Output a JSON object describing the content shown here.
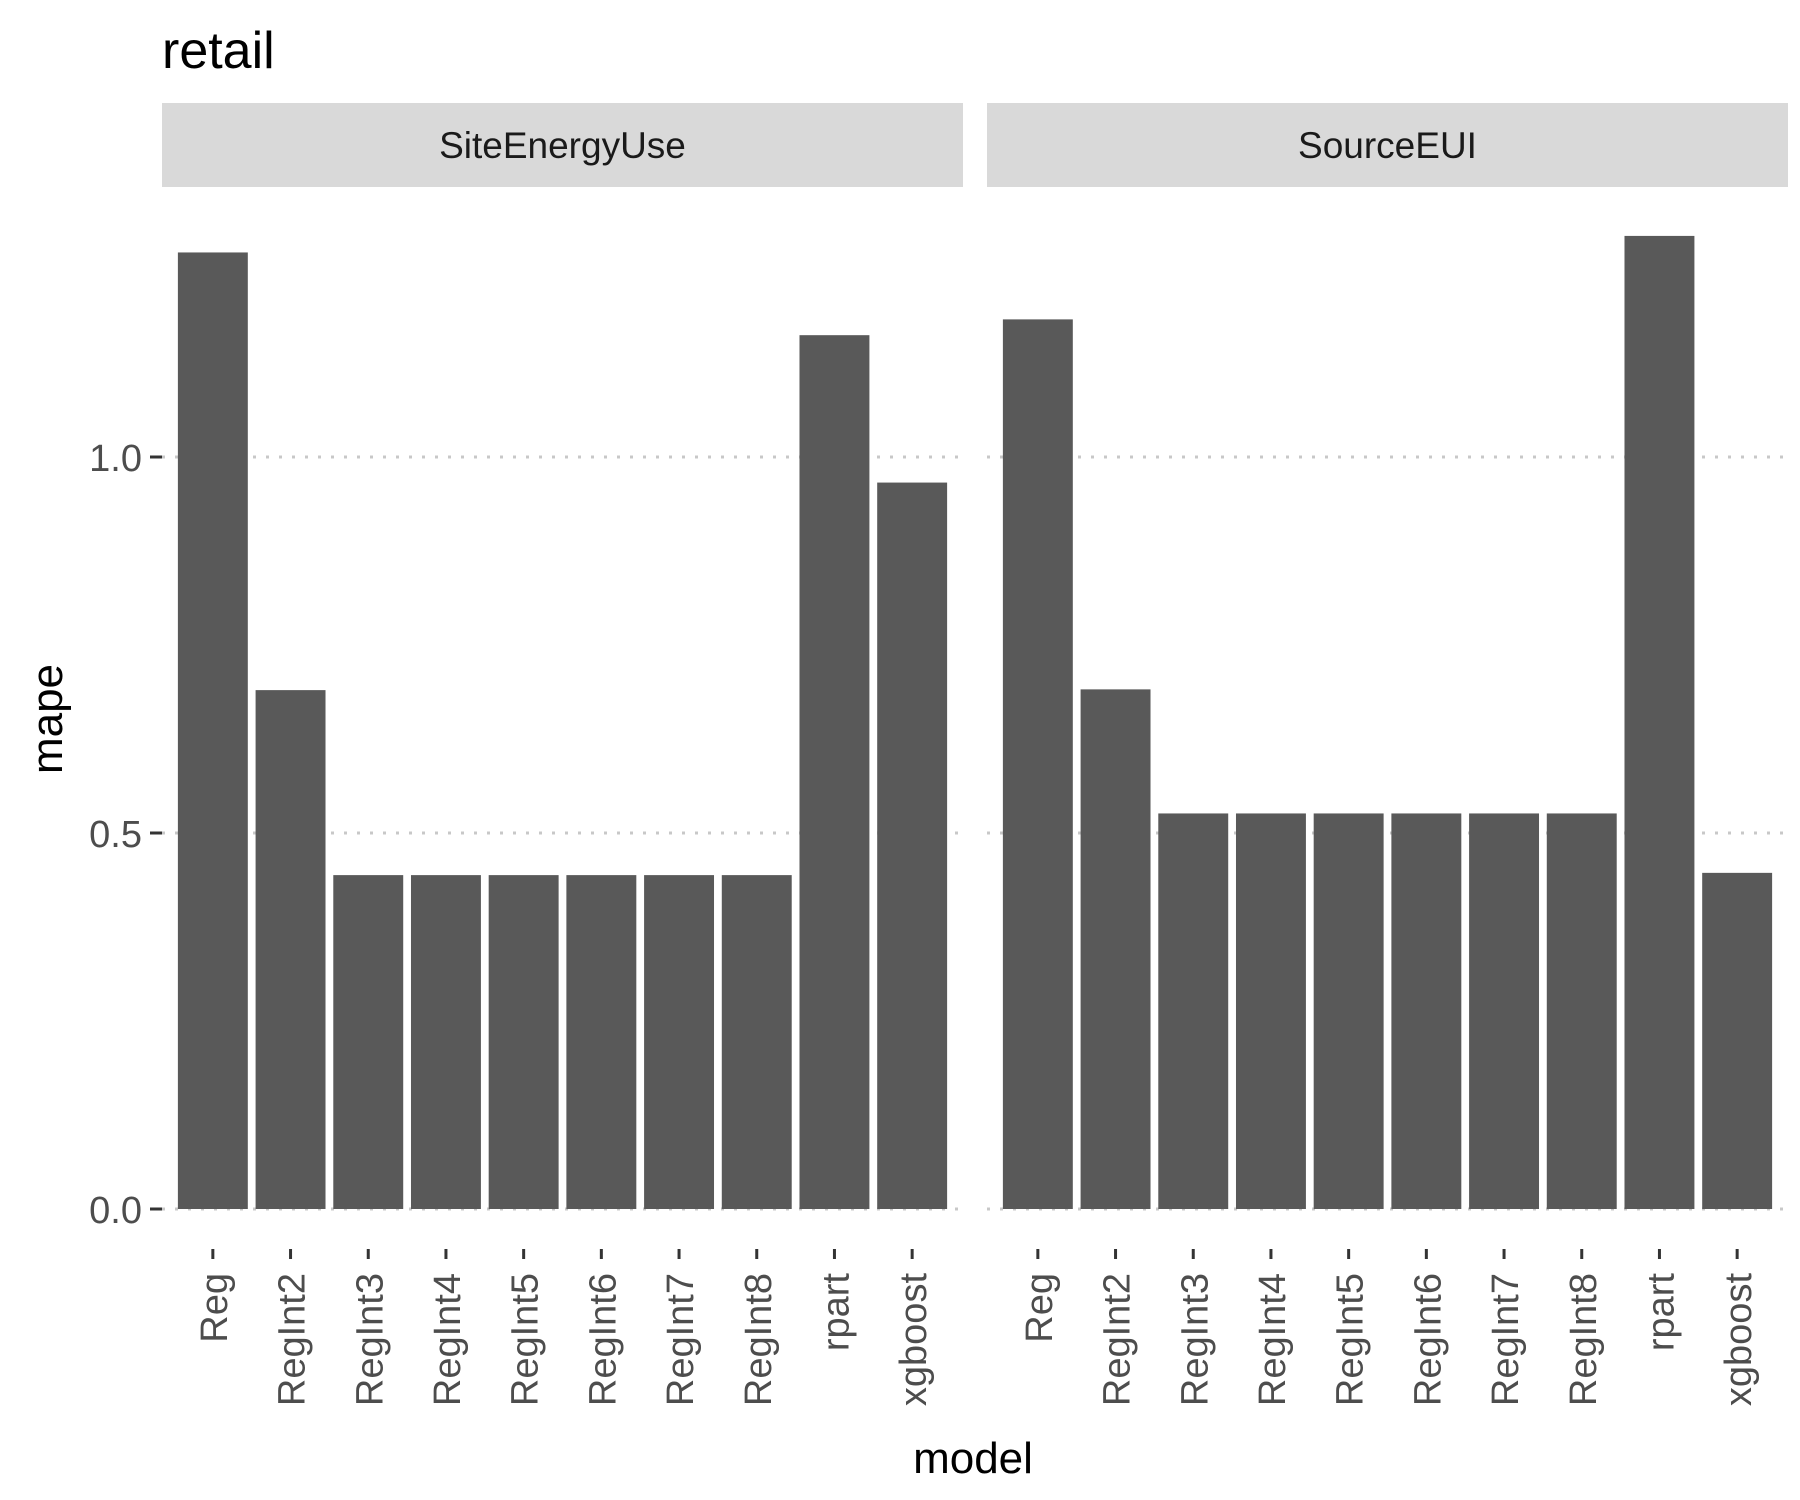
{
  "chart_data": {
    "type": "bar",
    "title": "retail",
    "xlabel": "model",
    "ylabel": "mape",
    "ylim": [
      0,
      1.3
    ],
    "yticks": [
      "0.0",
      "0.5",
      "1.0"
    ],
    "grid": "dotted horizontal major lines",
    "categories": [
      "Reg",
      "RegInt2",
      "RegInt3",
      "RegInt4",
      "RegInt5",
      "RegInt6",
      "RegInt7",
      "RegInt8",
      "rpart",
      "xgboost"
    ],
    "panels": [
      {
        "name": "SiteEnergyUse",
        "values": [
          1.272,
          0.69,
          0.444,
          0.444,
          0.444,
          0.444,
          0.444,
          0.444,
          1.162,
          0.966
        ]
      },
      {
        "name": "SourceEUI",
        "values": [
          1.183,
          0.691,
          0.526,
          0.526,
          0.526,
          0.526,
          0.526,
          0.526,
          1.294,
          0.447
        ]
      }
    ],
    "colors": {
      "bar": "#595959",
      "strip": "#d9d9d9",
      "grid": "#c8c8c8",
      "tick_text": "#4d4d4d",
      "text": "#000000"
    }
  }
}
